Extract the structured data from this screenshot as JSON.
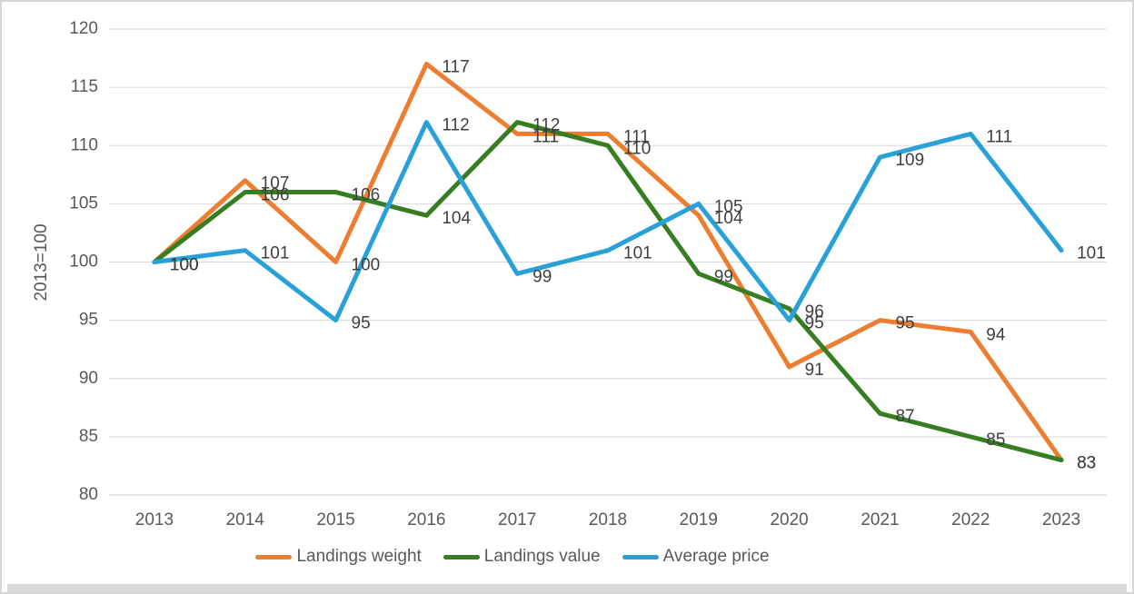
{
  "window": {
    "background": "#ffffff",
    "border_color": "#d4d6da",
    "scrollbar_color": "#d8d8d8"
  },
  "chart_data": {
    "type": "line",
    "title": "",
    "xlabel": "",
    "ylabel": "2013=100",
    "categories": [
      "2013",
      "2014",
      "2015",
      "2016",
      "2017",
      "2018",
      "2019",
      "2020",
      "2021",
      "2022",
      "2023"
    ],
    "series": [
      {
        "name": "Landings weight",
        "color": "#ED7D31",
        "values": [
          100,
          107,
          100,
          117,
          111,
          111,
          104,
          91,
          95,
          94,
          83
        ]
      },
      {
        "name": "Landings value",
        "color": "#377D22",
        "values": [
          100,
          106,
          106,
          104,
          112,
          110,
          99,
          96,
          87,
          85,
          83
        ]
      },
      {
        "name": "Average price",
        "color": "#29A0D8",
        "values": [
          100,
          101,
          95,
          112,
          99,
          101,
          105,
          95,
          109,
          111,
          101
        ]
      }
    ],
    "y_ticks": [
      120,
      115,
      110,
      105,
      100,
      95,
      90,
      85,
      80
    ],
    "ylim": [
      80,
      120
    ],
    "grid": "horizontal",
    "data_labels": true,
    "legend_position": "bottom",
    "gridline_color": "#D9D9D9",
    "axis_line_color": "#C9C9C9",
    "axis_text_color": "#595959",
    "data_label_color": "#3F3F3F"
  }
}
